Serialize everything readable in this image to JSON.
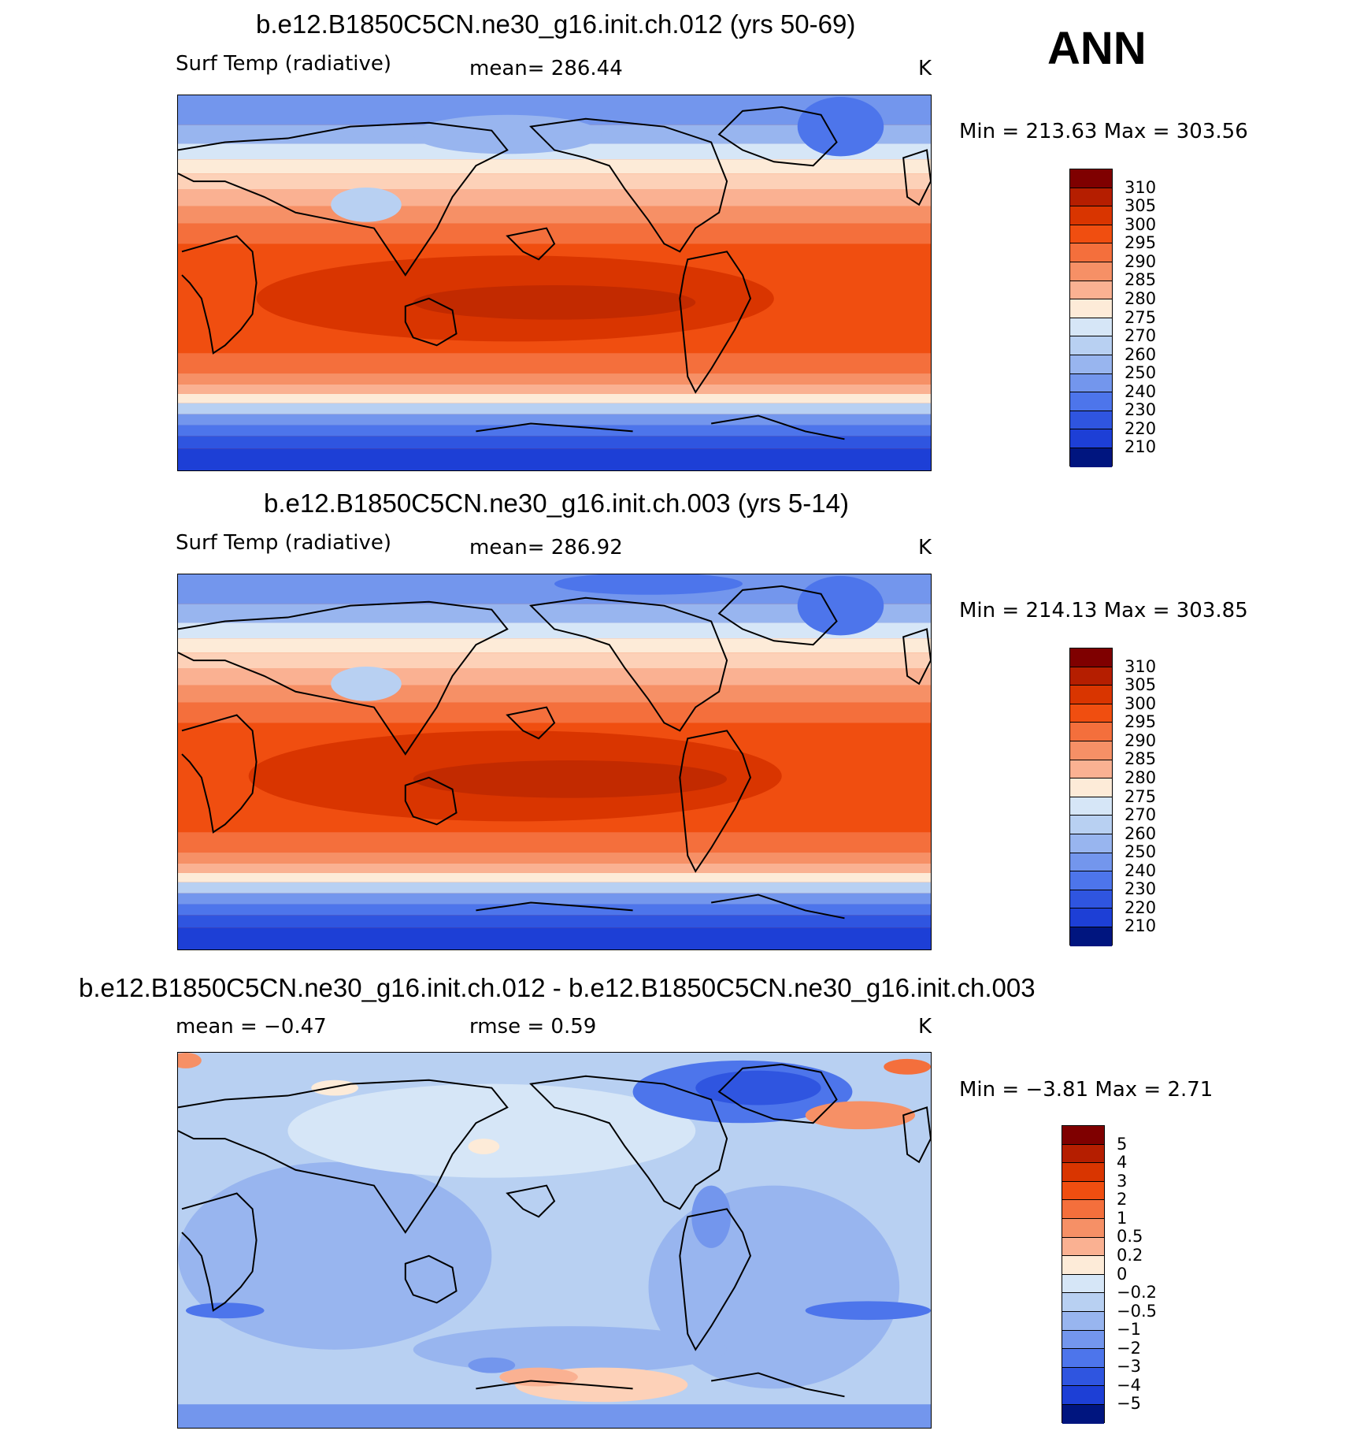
{
  "header": {
    "season": "ANN"
  },
  "panels": [
    {
      "title": "b.e12.B1850C5CN.ne30_g16.init.ch.012 (yrs 50-69)",
      "left_label": "Surf Temp (radiative)",
      "center_label": "mean= 286.44",
      "units": "K",
      "minmax": "Min = 213.63 Max = 303.56",
      "colorbar_labels": [
        "310",
        "305",
        "300",
        "295",
        "290",
        "285",
        "280",
        "275",
        "270",
        "260",
        "250",
        "240",
        "230",
        "220",
        "210"
      ]
    },
    {
      "title": "b.e12.B1850C5CN.ne30_g16.init.ch.003 (yrs 5-14)",
      "left_label": "Surf Temp (radiative)",
      "center_label": "mean= 286.92",
      "units": "K",
      "minmax": "Min = 214.13 Max = 303.85",
      "colorbar_labels": [
        "310",
        "305",
        "300",
        "295",
        "290",
        "285",
        "280",
        "275",
        "270",
        "260",
        "250",
        "240",
        "230",
        "220",
        "210"
      ]
    },
    {
      "title": "b.e12.B1850C5CN.ne30_g16.init.ch.012 - b.e12.B1850C5CN.ne30_g16.init.ch.003",
      "left_label": "mean =   −0.47",
      "center_label": "rmse =    0.59",
      "units": "K",
      "minmax": "Min =   −3.81 Max =    2.71",
      "colorbar_labels": [
        "5",
        "4",
        "3",
        "2",
        "1",
        "0.5",
        "0.2",
        "0",
        "−0.2",
        "−0.5",
        "−1",
        "−2",
        "−3",
        "−4",
        "−5"
      ]
    }
  ],
  "colors": {
    "temp_scale": [
      "#7f0000",
      "#b51e00",
      "#d93500",
      "#f04e10",
      "#f46f3c",
      "#f69066",
      "#fab192",
      "#fdd1b8",
      "#fdebd8",
      "#d6e6f7",
      "#b8d0f2",
      "#98b5ef",
      "#7396ed",
      "#4d75eb",
      "#2f55e0",
      "#1d3fd6",
      "#102ac4",
      "#00157f"
    ],
    "diff_scale": [
      "#7f0000",
      "#b51e00",
      "#d93500",
      "#f04e10",
      "#f46f3c",
      "#f69066",
      "#fab192",
      "#fdd1b8",
      "#fdebd8",
      "#d6e6f7",
      "#b8d0f2",
      "#98b5ef",
      "#7396ed",
      "#4d75eb",
      "#2f55e0",
      "#1d3fd6",
      "#102ac4",
      "#00157f"
    ]
  }
}
